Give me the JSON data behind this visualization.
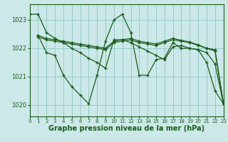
{
  "bg_color": "#cce8e8",
  "grid_color": "#99cccc",
  "line_color": "#1a5c1a",
  "xlabel": "Graphe pression niveau de la mer (hPa)",
  "xlabel_fontsize": 7,
  "xlim": [
    0,
    23
  ],
  "ylim": [
    1019.6,
    1023.55
  ],
  "yticks": [
    1020,
    1021,
    1022,
    1023
  ],
  "xticks": [
    0,
    1,
    2,
    3,
    4,
    5,
    6,
    7,
    8,
    9,
    10,
    11,
    12,
    13,
    14,
    15,
    16,
    17,
    18,
    19,
    20,
    21,
    22,
    23
  ],
  "series": [
    {
      "x": [
        0,
        1,
        2,
        3,
        4,
        5,
        6,
        7,
        8,
        9,
        10,
        11,
        12,
        13,
        14,
        15,
        16,
        17,
        18,
        19,
        20,
        21,
        22,
        23
      ],
      "y": [
        1023.2,
        1023.2,
        1022.55,
        1022.35,
        1022.2,
        1022.0,
        1021.85,
        1021.65,
        1021.5,
        1021.3,
        1022.3,
        1022.3,
        1022.2,
        1022.05,
        1021.9,
        1021.75,
        1021.6,
        1022.05,
        1022.1,
        1022.0,
        1021.95,
        1021.85,
        1021.45,
        1020.05
      ]
    },
    {
      "x": [
        1,
        2,
        3,
        4,
        5,
        6,
        7,
        8,
        9,
        10,
        11,
        12,
        13,
        14,
        15,
        16,
        17,
        18,
        19,
        20,
        21,
        22,
        23
      ],
      "y": [
        1022.45,
        1021.85,
        1021.75,
        1021.05,
        1020.65,
        1020.35,
        1020.05,
        1021.05,
        1022.25,
        1023.0,
        1023.2,
        1022.55,
        1021.05,
        1021.05,
        1021.6,
        1021.65,
        1022.2,
        1022.0,
        1022.0,
        1021.95,
        1021.5,
        1020.5,
        1020.05
      ]
    },
    {
      "comment": "Relatively flat near 1022.2-1022.3, x=1 to 23",
      "x": [
        1,
        2,
        3,
        4,
        5,
        6,
        7,
        8,
        9,
        10,
        11,
        12,
        13,
        14,
        15,
        16,
        17,
        18,
        19,
        20,
        21,
        22,
        23
      ],
      "y": [
        1022.4,
        1022.3,
        1022.25,
        1022.2,
        1022.15,
        1022.1,
        1022.05,
        1022.0,
        1021.95,
        1022.2,
        1022.25,
        1022.3,
        1022.2,
        1022.15,
        1022.1,
        1022.2,
        1022.3,
        1022.25,
        1022.2,
        1022.1,
        1022.0,
        1021.95,
        1020.05
      ]
    },
    {
      "x": [
        1,
        2,
        3,
        4,
        5,
        6,
        7,
        8,
        9,
        10,
        11,
        12,
        13,
        14,
        15,
        16,
        17,
        18,
        19,
        20,
        21,
        22,
        23
      ],
      "y": [
        1022.45,
        1022.35,
        1022.3,
        1022.25,
        1022.2,
        1022.15,
        1022.1,
        1022.05,
        1022.0,
        1022.25,
        1022.3,
        1022.35,
        1022.25,
        1022.2,
        1022.15,
        1022.25,
        1022.35,
        1022.28,
        1022.22,
        1022.12,
        1022.0,
        1021.9,
        1020.05
      ]
    }
  ]
}
